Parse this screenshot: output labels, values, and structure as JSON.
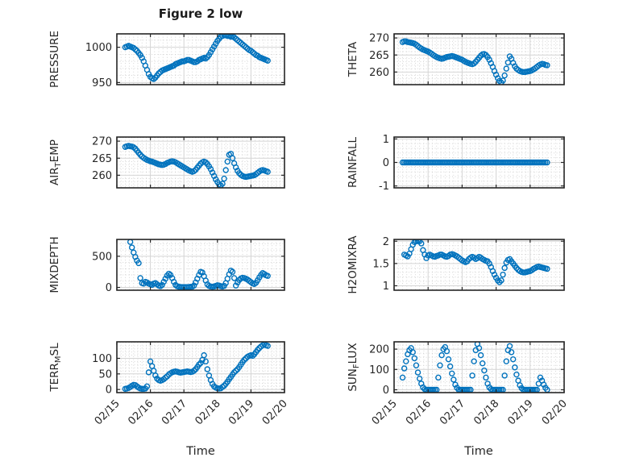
{
  "figure": {
    "background": "#ffffff",
    "axis_color": "#262626",
    "major_grid_color": "#d4d4d4",
    "minor_grid_color": "#c9c9c9",
    "tick_label_color": "#262626"
  },
  "chart_data": {
    "type": "scatter",
    "layout": "4x2-subplot-grid",
    "suptitle": "Figure 2 low",
    "xlabel": "Time",
    "marker": "open-circle",
    "marker_color": "#0072BD",
    "grid": "on",
    "minor_grid": "on",
    "xlim_days": [
      0,
      5
    ],
    "xticks_days": [
      0,
      1,
      2,
      3,
      4,
      5
    ],
    "xtick_labels": [
      "02/15",
      "02/16",
      "02/17",
      "02/18",
      "02/19",
      "02/20"
    ],
    "x_days": [
      0.25,
      0.3,
      0.35,
      0.4,
      0.45,
      0.5,
      0.55,
      0.6,
      0.65,
      0.7,
      0.75,
      0.8,
      0.85,
      0.9,
      0.95,
      1,
      1.05,
      1.1,
      1.15,
      1.2,
      1.25,
      1.3,
      1.35,
      1.4,
      1.45,
      1.5,
      1.55,
      1.6,
      1.65,
      1.7,
      1.75,
      1.8,
      1.85,
      1.9,
      1.95,
      2,
      2.05,
      2.1,
      2.15,
      2.2,
      2.25,
      2.3,
      2.35,
      2.4,
      2.45,
      2.5,
      2.55,
      2.6,
      2.65,
      2.7,
      2.75,
      2.8,
      2.85,
      2.9,
      2.95,
      3,
      3.05,
      3.1,
      3.15,
      3.2,
      3.25,
      3.3,
      3.35,
      3.4,
      3.45,
      3.5,
      3.55,
      3.6,
      3.65,
      3.7,
      3.75,
      3.8,
      3.85,
      3.9,
      3.95,
      4,
      4.05,
      4.1,
      4.15,
      4.2,
      4.25,
      4.3,
      4.35,
      4.4,
      4.45,
      4.5
    ],
    "subplots": [
      {
        "name": "PRESSURE",
        "row": 0,
        "col": 0,
        "ylabel_parts": [
          {
            "text": "PRESSURE",
            "sub": false
          }
        ],
        "ylim": [
          947,
          1019
        ],
        "yticks": [
          950,
          1000
        ],
        "values": [
          1000,
          1001,
          1002,
          1001,
          1000,
          999,
          997,
          995,
          992,
          989,
          985,
          980,
          974,
          968,
          962,
          958,
          956,
          955,
          957,
          960,
          963,
          965,
          967,
          968,
          969,
          970,
          971,
          972,
          973,
          974,
          976,
          977,
          978,
          979,
          980,
          980,
          981,
          982,
          982,
          981,
          980,
          979,
          979,
          980,
          982,
          983,
          984,
          985,
          984,
          986,
          989,
          993,
          997,
          1001,
          1005,
          1009,
          1012,
          1015,
          1016,
          1017,
          1017,
          1016,
          1016,
          1015,
          1015,
          1014,
          1012,
          1010,
          1008,
          1006,
          1004,
          1002,
          1000,
          998,
          996,
          995,
          993,
          991,
          989,
          988,
          986,
          985,
          984,
          983,
          982,
          981
        ]
      },
      {
        "name": "THETA",
        "row": 0,
        "col": 1,
        "ylabel_parts": [
          {
            "text": "THETA",
            "sub": false
          }
        ],
        "ylim": [
          256.3,
          271.2
        ],
        "yticks": [
          260,
          265,
          270
        ],
        "values": [
          268.8,
          269,
          269,
          268.8,
          268.7,
          268.6,
          268.5,
          268.3,
          268,
          267.6,
          267.2,
          266.9,
          266.6,
          266.4,
          266.2,
          266,
          265.7,
          265.4,
          265,
          264.7,
          264.4,
          264.2,
          264,
          263.9,
          264,
          264.2,
          264.4,
          264.5,
          264.6,
          264.7,
          264.6,
          264.4,
          264.2,
          264,
          263.8,
          263.6,
          263.3,
          263,
          262.8,
          262.6,
          262.4,
          262.3,
          262.5,
          263,
          263.6,
          264.2,
          264.8,
          265.2,
          265.3,
          265,
          264.4,
          263.6,
          262.6,
          261.5,
          260.3,
          259.2,
          258.2,
          257.4,
          256.9,
          257.5,
          259,
          261,
          262.8,
          264.6,
          263.9,
          262.7,
          261.7,
          261,
          260.6,
          260.3,
          260.1,
          260,
          260,
          260.1,
          260.2,
          260.3,
          260.5,
          260.8,
          261.1,
          261.5,
          261.9,
          262.2,
          262.4,
          262.3,
          262.1,
          262
        ]
      },
      {
        "name": "AIR_TEMP",
        "row": 1,
        "col": 0,
        "ylabel_parts": [
          {
            "text": "AIR",
            "sub": false
          },
          {
            "text": "T",
            "sub": true
          },
          {
            "text": "EMP",
            "sub": false
          }
        ],
        "ylim": [
          256.3,
          271.2
        ],
        "yticks": [
          260,
          265,
          270
        ],
        "values": [
          268.3,
          268.5,
          268.6,
          268.5,
          268.4,
          268.2,
          267.8,
          267.2,
          266.6,
          266,
          265.5,
          265.1,
          264.8,
          264.5,
          264.3,
          264.1,
          264,
          263.8,
          263.6,
          263.4,
          263.2,
          263.1,
          263,
          263.1,
          263.3,
          263.6,
          263.8,
          264,
          264.1,
          264,
          263.8,
          263.5,
          263.2,
          262.9,
          262.6,
          262.3,
          262,
          261.7,
          261.4,
          261.2,
          261,
          261.2,
          261.6,
          262.2,
          262.8,
          263.4,
          263.8,
          264,
          263.8,
          263.3,
          262.6,
          261.8,
          260.8,
          259.8,
          258.8,
          258,
          257.3,
          257,
          257.5,
          259,
          261.5,
          264,
          266,
          266.3,
          265,
          263.5,
          262.3,
          261.3,
          260.6,
          260.1,
          259.8,
          259.6,
          259.5,
          259.6,
          259.7,
          259.8,
          259.9,
          260,
          260.3,
          260.7,
          261.1,
          261.4,
          261.5,
          261.4,
          261.2,
          261
        ]
      },
      {
        "name": "RAINFALL",
        "row": 1,
        "col": 1,
        "ylabel_parts": [
          {
            "text": "RAINFALL",
            "sub": false
          }
        ],
        "ylim": [
          -1.08,
          1.08
        ],
        "yticks": [
          -1,
          0,
          1
        ],
        "values": [
          0,
          0,
          0,
          0,
          0,
          0,
          0,
          0,
          0,
          0,
          0,
          0,
          0,
          0,
          0,
          0,
          0,
          0,
          0,
          0,
          0,
          0,
          0,
          0,
          0,
          0,
          0,
          0,
          0,
          0,
          0,
          0,
          0,
          0,
          0,
          0,
          0,
          0,
          0,
          0,
          0,
          0,
          0,
          0,
          0,
          0,
          0,
          0,
          0,
          0,
          0,
          0,
          0,
          0,
          0,
          0,
          0,
          0,
          0,
          0,
          0,
          0,
          0,
          0,
          0,
          0,
          0,
          0,
          0,
          0,
          0,
          0,
          0,
          0,
          0,
          0,
          0,
          0,
          0,
          0,
          0,
          0,
          0,
          0,
          0,
          0
        ]
      },
      {
        "name": "MIXDEPTH",
        "row": 2,
        "col": 0,
        "ylabel_parts": [
          {
            "text": "MIXDEPTH",
            "sub": false
          }
        ],
        "ylim": [
          -45,
          770
        ],
        "yticks": [
          0,
          500
        ],
        "values": [
          null,
          null,
          null,
          730,
          640,
          560,
          490,
          430,
          390,
          150,
          70,
          60,
          90,
          80,
          60,
          50,
          40,
          60,
          70,
          50,
          30,
          20,
          40,
          90,
          140,
          190,
          220,
          200,
          150,
          90,
          40,
          20,
          10,
          8,
          6,
          5,
          5,
          6,
          8,
          10,
          12,
          30,
          80,
          140,
          200,
          250,
          240,
          180,
          110,
          50,
          25,
          15,
          10,
          15,
          25,
          35,
          30,
          20,
          15,
          25,
          70,
          140,
          210,
          270,
          250,
          150,
          30,
          80,
          120,
          145,
          155,
          150,
          140,
          125,
          105,
          85,
          65,
          55,
          75,
          115,
          160,
          200,
          230,
          215,
          195,
          185
        ]
      },
      {
        "name": "H2OMIXRA",
        "row": 2,
        "col": 1,
        "ylabel_parts": [
          {
            "text": "H2OMIXRA",
            "sub": false
          }
        ],
        "ylim": [
          0.9,
          2.04
        ],
        "yticks": [
          1,
          1.5,
          2
        ],
        "values": [
          null,
          1.7,
          1.68,
          1.66,
          1.72,
          1.82,
          1.92,
          1.98,
          2,
          2,
          2,
          1.95,
          1.8,
          1.7,
          1.62,
          1.68,
          1.7,
          1.68,
          1.66,
          1.65,
          1.67,
          1.68,
          1.7,
          1.7,
          1.68,
          1.66,
          1.65,
          1.67,
          1.7,
          1.71,
          1.7,
          1.68,
          1.66,
          1.63,
          1.6,
          1.57,
          1.55,
          1.53,
          1.55,
          1.6,
          1.63,
          1.65,
          1.63,
          1.6,
          1.62,
          1.65,
          1.63,
          1.6,
          1.58,
          1.56,
          1.55,
          1.5,
          1.42,
          1.33,
          1.25,
          1.18,
          1.12,
          1.08,
          1.12,
          1.25,
          1.4,
          1.52,
          1.58,
          1.6,
          1.55,
          1.5,
          1.45,
          1.4,
          1.36,
          1.33,
          1.31,
          1.3,
          1.3,
          1.31,
          1.32,
          1.33,
          1.35,
          1.38,
          1.4,
          1.42,
          1.43,
          1.42,
          1.41,
          1.4,
          1.39,
          1.38
        ]
      },
      {
        "name": "TERR_MSL",
        "row": 3,
        "col": 0,
        "ylabel_parts": [
          {
            "text": "TERR",
            "sub": false
          },
          {
            "text": "M",
            "sub": true
          },
          {
            "text": "SL",
            "sub": false
          }
        ],
        "ylim": [
          -10,
          153
        ],
        "yticks": [
          0,
          50,
          100
        ],
        "values": [
          2,
          3,
          5,
          8,
          12,
          15,
          14,
          10,
          6,
          3,
          2,
          2,
          3,
          10,
          55,
          90,
          75,
          60,
          45,
          35,
          30,
          28,
          30,
          33,
          38,
          42,
          48,
          52,
          55,
          57,
          58,
          57,
          55,
          54,
          55,
          56,
          57,
          58,
          57,
          56,
          57,
          60,
          65,
          72,
          80,
          85,
          95,
          110,
          90,
          65,
          45,
          30,
          18,
          10,
          6,
          4,
          3,
          4,
          8,
          12,
          18,
          25,
          33,
          40,
          48,
          55,
          60,
          65,
          72,
          80,
          88,
          95,
          100,
          105,
          108,
          110,
          108,
          113,
          120,
          127,
          133,
          138,
          142,
          145,
          142,
          140
        ]
      },
      {
        "name": "SUN_FLUX",
        "row": 3,
        "col": 1,
        "ylabel_parts": [
          {
            "text": "SUN",
            "sub": false
          },
          {
            "text": "F",
            "sub": true
          },
          {
            "text": "LUX",
            "sub": false
          }
        ],
        "ylim": [
          -14,
          236
        ],
        "yticks": [
          0,
          100,
          200
        ],
        "values": [
          60,
          105,
          140,
          175,
          195,
          205,
          185,
          155,
          120,
          85,
          55,
          30,
          12,
          3,
          0,
          0,
          0,
          0,
          0,
          0,
          0,
          60,
          120,
          170,
          200,
          210,
          190,
          150,
          115,
          80,
          50,
          25,
          10,
          0,
          0,
          0,
          0,
          0,
          0,
          0,
          0,
          70,
          140,
          195,
          225,
          205,
          170,
          130,
          95,
          60,
          30,
          12,
          3,
          0,
          0,
          0,
          0,
          0,
          0,
          0,
          70,
          140,
          195,
          215,
          185,
          150,
          110,
          75,
          45,
          22,
          8,
          0,
          0,
          0,
          0,
          0,
          0,
          0,
          0,
          0,
          30,
          60,
          45,
          25,
          10,
          0
        ]
      }
    ]
  }
}
